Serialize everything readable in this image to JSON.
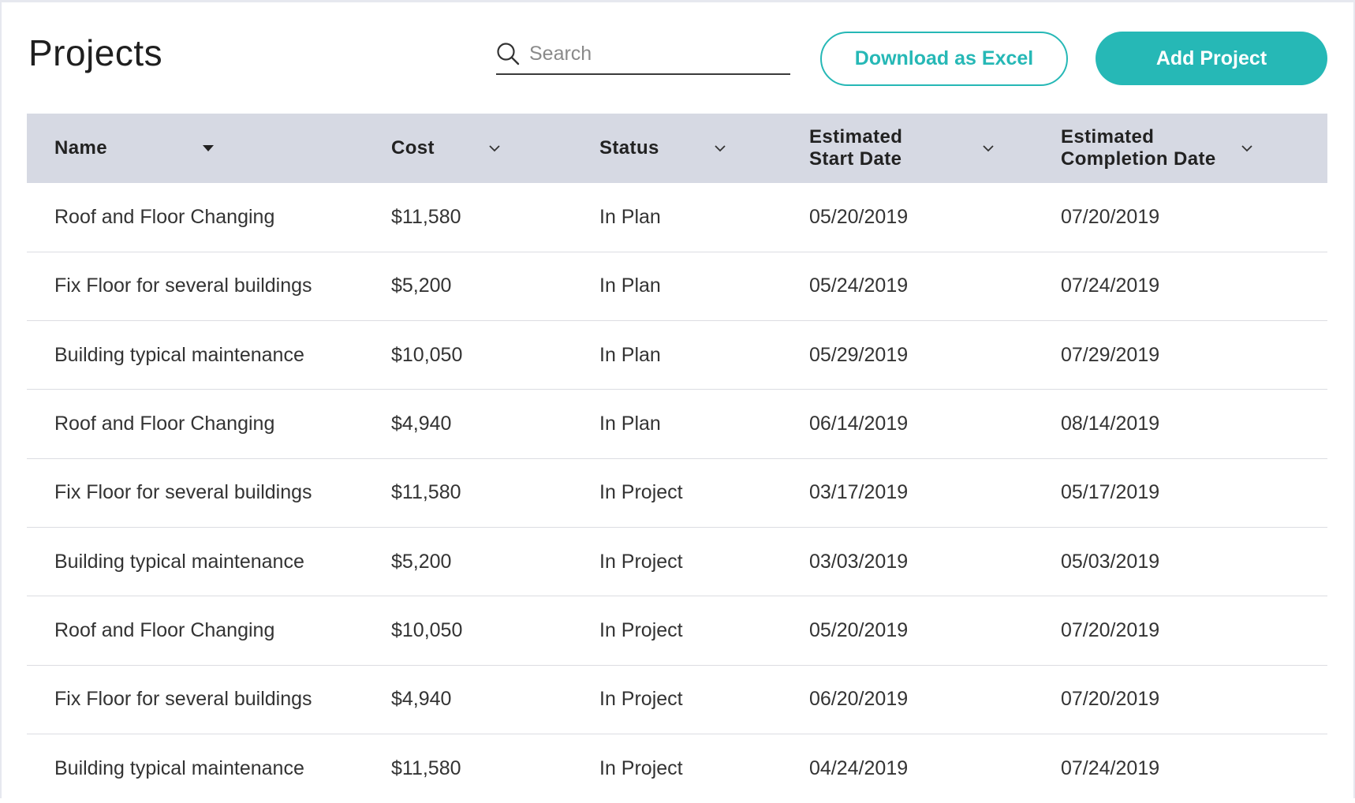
{
  "header": {
    "title": "Projects",
    "search_placeholder": "Search",
    "search_icon": "search-icon",
    "download_label": "Download as Excel",
    "add_label": "Add Project"
  },
  "colors": {
    "accent": "#26b8b6",
    "table_header_bg": "#d6d9e3",
    "row_divider": "#dcdde2"
  },
  "table": {
    "columns": [
      {
        "label": "Name",
        "sort_icon": "caret-down-filled-icon"
      },
      {
        "label": "Cost",
        "sort_icon": "chevron-down-icon"
      },
      {
        "label": "Status",
        "sort_icon": "chevron-down-icon"
      },
      {
        "label": "Estimated Start Date",
        "sort_icon": "chevron-down-icon"
      },
      {
        "label": "Estimated Completion Date",
        "sort_icon": "chevron-down-icon"
      }
    ],
    "rows": [
      {
        "name": "Roof and Floor Changing",
        "cost": "$11,580",
        "status": "In Plan",
        "start": "05/20/2019",
        "end": "07/20/2019"
      },
      {
        "name": "Fix Floor for several buildings",
        "cost": "$5,200",
        "status": "In Plan",
        "start": "05/24/2019",
        "end": "07/24/2019"
      },
      {
        "name": "Building typical maintenance",
        "cost": "$10,050",
        "status": "In Plan",
        "start": "05/29/2019",
        "end": "07/29/2019"
      },
      {
        "name": "Roof and Floor Changing",
        "cost": "$4,940",
        "status": "In Plan",
        "start": "06/14/2019",
        "end": "08/14/2019"
      },
      {
        "name": "Fix Floor for several buildings",
        "cost": "$11,580",
        "status": "In Project",
        "start": "03/17/2019",
        "end": "05/17/2019"
      },
      {
        "name": "Building typical maintenance",
        "cost": "$5,200",
        "status": "In Project",
        "start": "03/03/2019",
        "end": "05/03/2019"
      },
      {
        "name": "Roof and Floor Changing",
        "cost": "$10,050",
        "status": "In Project",
        "start": "05/20/2019",
        "end": "07/20/2019"
      },
      {
        "name": "Fix Floor for several buildings",
        "cost": "$4,940",
        "status": "In Project",
        "start": "06/20/2019",
        "end": "07/20/2019"
      },
      {
        "name": "Building typical maintenance",
        "cost": "$11,580",
        "status": "In Project",
        "start": "04/24/2019",
        "end": "07/24/2019"
      }
    ]
  }
}
